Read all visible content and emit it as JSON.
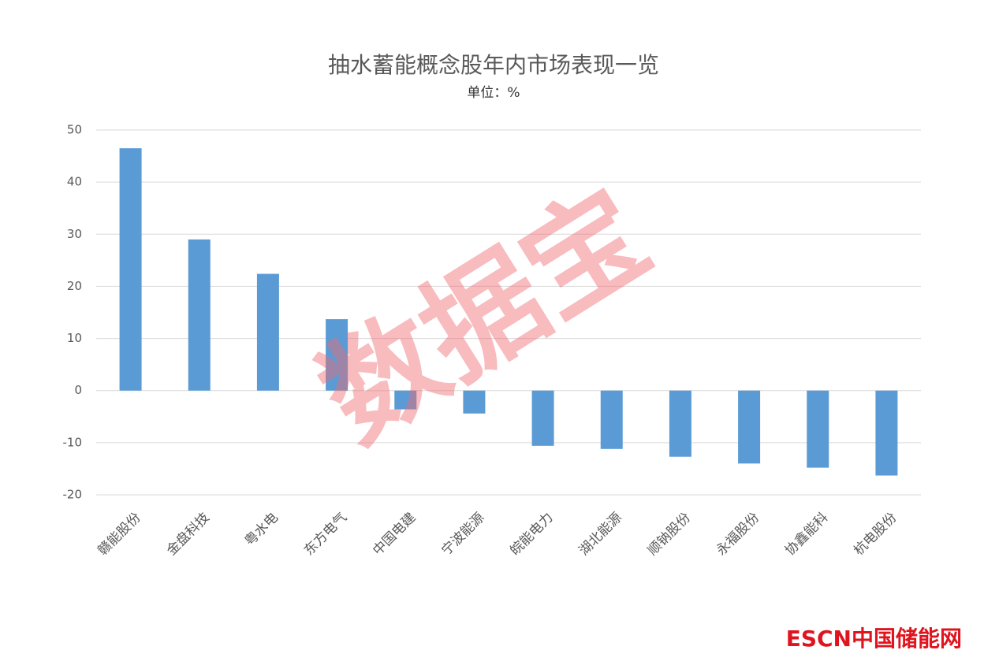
{
  "chart_data": {
    "type": "bar",
    "title": "抽水蓄能概念股年内市场表现一览",
    "subtitle": "单位：%",
    "categories": [
      "赣能股份",
      "金盘科技",
      "粤水电",
      "东方电气",
      "中国电建",
      "宁波能源",
      "皖能电力",
      "湖北能源",
      "顺钠股份",
      "永福股份",
      "协鑫能科",
      "杭电股份"
    ],
    "values": [
      46.5,
      29.0,
      22.4,
      13.7,
      -3.6,
      -4.4,
      -10.6,
      -11.2,
      -12.7,
      -14.0,
      -14.8,
      -16.3
    ],
    "color": "#5b9bd5",
    "ylim": [
      -20,
      50
    ],
    "yticks": [
      -20,
      -10,
      0,
      10,
      20,
      30,
      40,
      50
    ],
    "grid": true,
    "watermark": "数据宝",
    "logo": "ESCN中国储能网"
  }
}
